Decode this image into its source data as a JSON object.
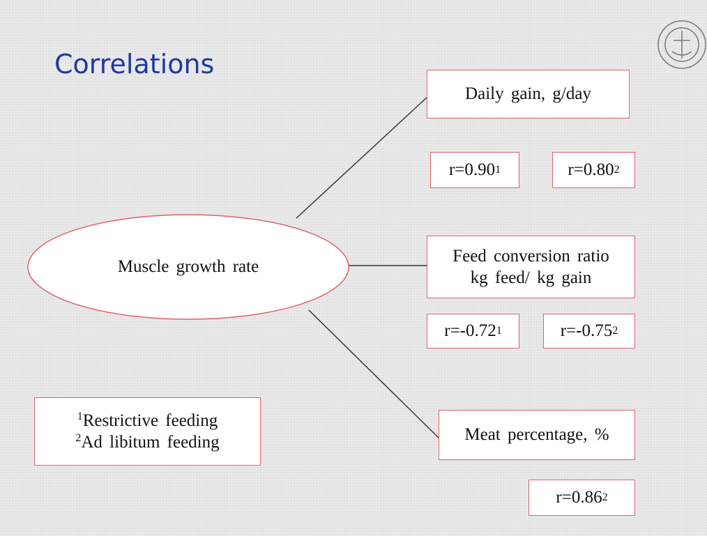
{
  "title": "Correlations",
  "center": {
    "label": "Muscle growth rate"
  },
  "nodes": [
    {
      "lines": [
        "Daily gain, g/day"
      ]
    },
    {
      "lines": [
        "Feed conversion ratio",
        "kg feed/ kg gain"
      ]
    },
    {
      "lines": [
        "Meat percentage, %"
      ]
    }
  ],
  "correlations": [
    {
      "text": "r=0.90",
      "sup": "1"
    },
    {
      "text": "r=0.80",
      "sup": "2"
    },
    {
      "text": "r=-0.72",
      "sup": "1"
    },
    {
      "text": "r=-0.75",
      "sup": "2"
    },
    {
      "text": "r=0.86",
      "sup": "2"
    }
  ],
  "legend": [
    {
      "sup": "1",
      "text": "Restrictive feeding"
    },
    {
      "sup": "2",
      "text": "Ad libitum feeding"
    }
  ]
}
